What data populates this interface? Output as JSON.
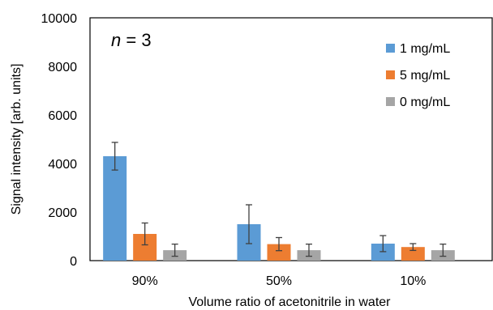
{
  "chart_data": {
    "type": "bar",
    "categories": [
      "90%",
      "50%",
      "10%"
    ],
    "series": [
      {
        "name": "1 mg/mL",
        "color": "#5B9BD5",
        "values": [
          4300,
          1500,
          700
        ],
        "errors": [
          570,
          800,
          330
        ]
      },
      {
        "name": "5 mg/mL",
        "color": "#ED7D31",
        "values": [
          1100,
          680,
          560
        ],
        "errors": [
          450,
          270,
          140
        ]
      },
      {
        "name": "0 mg/mL",
        "color": "#A5A5A5",
        "values": [
          430,
          430,
          430
        ],
        "errors": [
          250,
          250,
          250
        ]
      }
    ],
    "ylim": [
      0,
      10000
    ],
    "yticks": [
      0,
      2000,
      4000,
      6000,
      8000,
      10000
    ],
    "ylabel": "Signal intensity [arb. units]",
    "xlabel": "Volume ratio of acetonitrile in water",
    "legend_position": "top-right",
    "grid": false,
    "annotation": {
      "variable": "n",
      "relation": " = 3"
    }
  }
}
